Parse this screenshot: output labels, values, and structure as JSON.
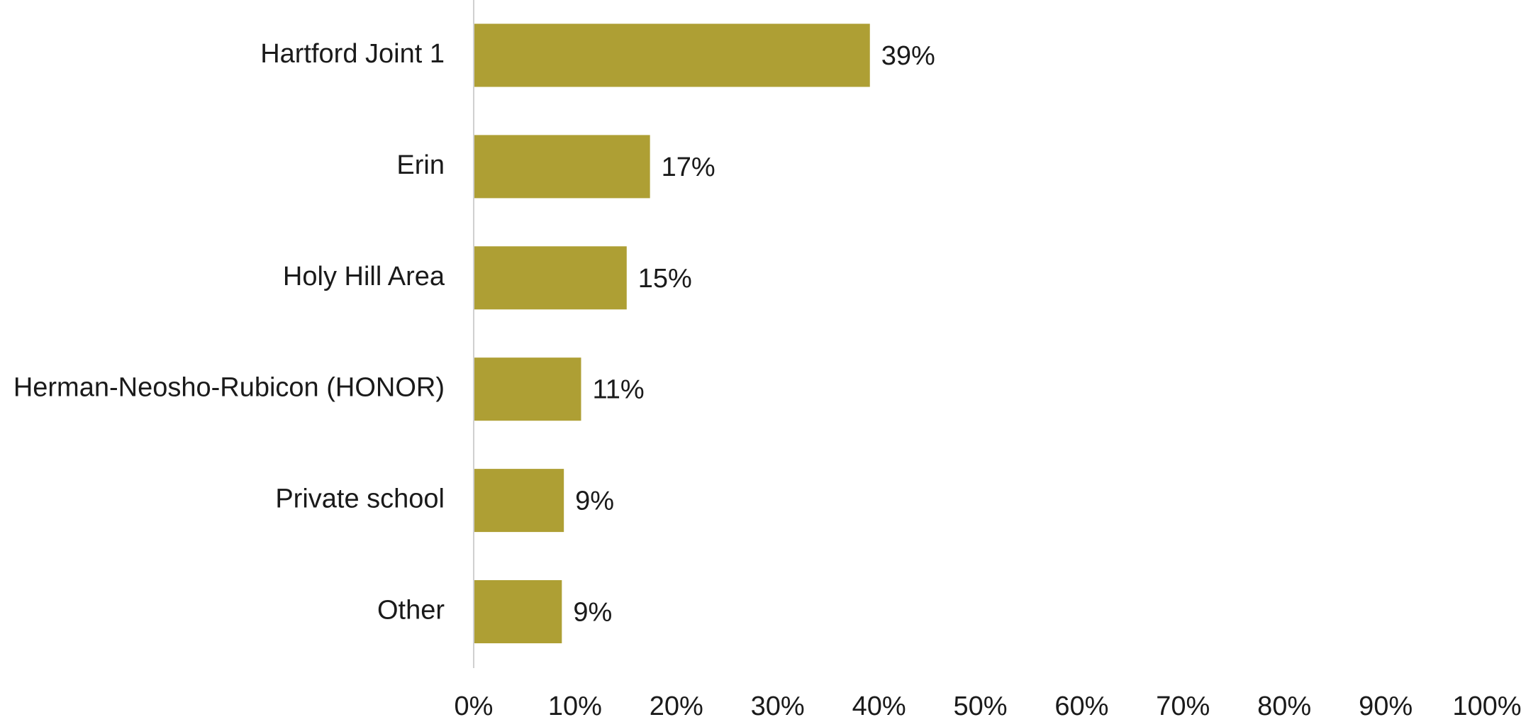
{
  "chart_data": {
    "type": "barh",
    "categories": [
      "Hartford Joint 1",
      "Erin",
      "Holy Hill Area",
      "Herman-Neosho-Rubicon (HONOR)",
      "Private school",
      "Other"
    ],
    "values": [
      39.1,
      17.4,
      15.1,
      10.6,
      8.9,
      8.7
    ],
    "value_labels": [
      "39%",
      "17%",
      "15%",
      "11%",
      "9%",
      "9%"
    ],
    "color": "#ae9f34",
    "xlim": [
      0,
      100
    ],
    "xticks": [
      {
        "value": 0,
        "label": "0%"
      },
      {
        "value": 10,
        "label": "10%"
      },
      {
        "value": 20,
        "label": "20%"
      },
      {
        "value": 30,
        "label": "30%"
      },
      {
        "value": 40,
        "label": "40%"
      },
      {
        "value": 50,
        "label": "50%"
      },
      {
        "value": 60,
        "label": "60%"
      },
      {
        "value": 70,
        "label": "70%"
      },
      {
        "value": 80,
        "label": "80%"
      },
      {
        "value": 90,
        "label": "90%"
      },
      {
        "value": 100,
        "label": "100%"
      }
    ],
    "grid": false
  }
}
